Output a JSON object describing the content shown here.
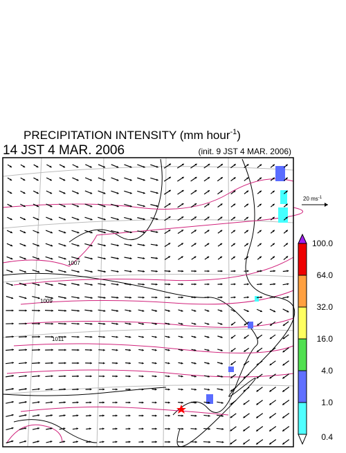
{
  "header": {
    "title": "PRECIPITATION INTENSITY (mm hour",
    "title_exponent": "-1",
    "title_close": ")",
    "valid_time": "14 JST 4 MAR. 2006",
    "init_time": "(init. 9 JST 4 MAR. 2006)"
  },
  "vector_scale": {
    "label": "20 ms",
    "exponent": "-1"
  },
  "contour_labels": [
    "1007",
    "1009",
    "1011"
  ],
  "colorbar": {
    "levels": [
      "100.0",
      "64.0",
      "32.0",
      "16.0",
      "4.0",
      "1.0",
      "0.4"
    ]
  }
}
